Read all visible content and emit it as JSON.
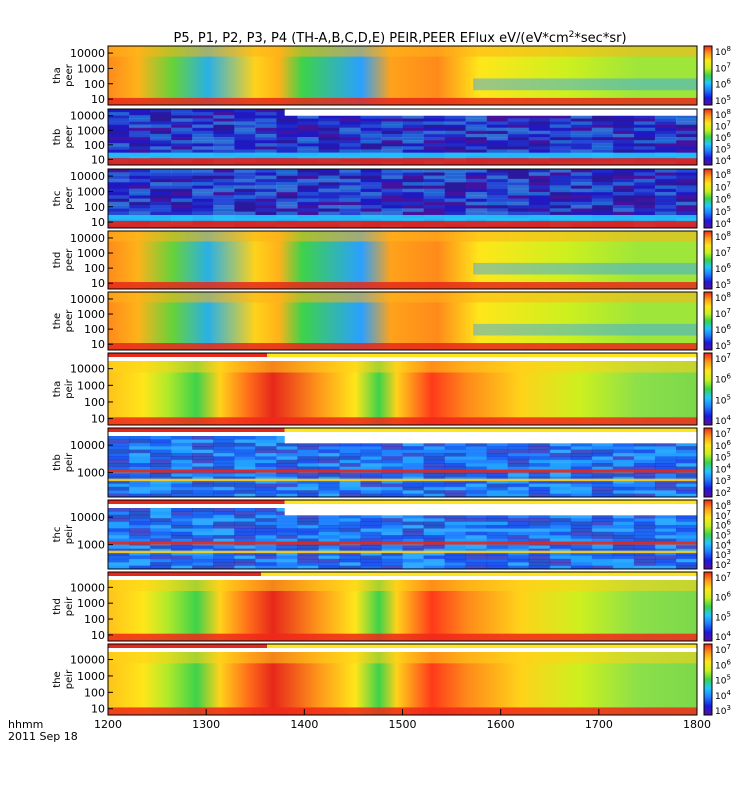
{
  "chart_data": {
    "type": "heatmap",
    "title": "P5, P1, P2, P3, P4 (TH-A,B,C,D,E) PEIR,PEER EFlux eV/(eV*cm",
    "title_sup": "2",
    "title_tail": "*sec*sr)",
    "time_axis": {
      "label_line1": "hhmm",
      "label_line2": "2011 Sep 18",
      "range": [
        1200,
        1800
      ],
      "ticks": [
        "1200",
        "1300",
        "1400",
        "1500",
        "1600",
        "1700",
        "1800"
      ]
    },
    "colorbar_colors": [
      "#5a0fa0",
      "#1a1adc",
      "#1f7bff",
      "#22c8ff",
      "#3ad24a",
      "#c8f01e",
      "#ffe61a",
      "#ff9a1a",
      "#f0281a"
    ],
    "panels": [
      {
        "name": "tha-peer",
        "ylabel1": "tha",
        "ylabel2": "peer",
        "yticks": [
          "10000",
          "1000",
          "100",
          "10"
        ],
        "cbar": {
          "base": "10",
          "exps": [
            "8",
            "7",
            "6",
            "5"
          ]
        },
        "mode": "electron",
        "gap": false,
        "bars": false,
        "cut": 1.0,
        "bg": "#ffa21a",
        "low_band": "#e6281a"
      },
      {
        "name": "thb-peer",
        "ylabel1": "thb",
        "ylabel2": "peer",
        "yticks": [
          "10000",
          "1000",
          "100",
          "10"
        ],
        "cbar": {
          "base": "10",
          "exps": [
            "8",
            "7",
            "6",
            "5",
            "4"
          ]
        },
        "mode": "noise_e",
        "gap": true,
        "gap_cut": 0.3,
        "bars": false,
        "cut": 1.0,
        "bg": "#2a1a9c",
        "low_band": "#e6281a"
      },
      {
        "name": "thc-peer",
        "ylabel1": "thc",
        "ylabel2": "peer",
        "yticks": [
          "10000",
          "1000",
          "100",
          "10"
        ],
        "cbar": {
          "base": "10",
          "exps": [
            "8",
            "7",
            "6",
            "5",
            "4"
          ]
        },
        "mode": "noise_e",
        "gap": false,
        "bars": false,
        "cut": 1.0,
        "bg": "#2a1a9c",
        "low_band": "#e6281a"
      },
      {
        "name": "thd-peer",
        "ylabel1": "thd",
        "ylabel2": "peer",
        "yticks": [
          "10000",
          "1000",
          "100",
          "10"
        ],
        "cbar": {
          "base": "10",
          "exps": [
            "8",
            "7",
            "6",
            "5"
          ]
        },
        "mode": "electron",
        "gap": false,
        "bars": false,
        "cut": 1.0,
        "bg": "#ffa21a",
        "low_band": "#e6281a"
      },
      {
        "name": "the-peer",
        "ylabel1": "the",
        "ylabel2": "peer",
        "yticks": [
          "10000",
          "1000",
          "100",
          "10"
        ],
        "cbar": {
          "base": "10",
          "exps": [
            "8",
            "7",
            "6",
            "5"
          ]
        },
        "mode": "electron",
        "gap": false,
        "bars": false,
        "cut": 1.0,
        "bg": "#ffa21a",
        "low_band": "#e6281a"
      },
      {
        "name": "tha-peir",
        "ylabel1": "tha",
        "ylabel2": "peir",
        "yticks": [
          "10000",
          "1000",
          "100",
          "10"
        ],
        "cbar": {
          "base": "10",
          "exps": [
            "7",
            "6",
            "5",
            "4"
          ]
        },
        "mode": "ion",
        "gap": false,
        "bars": true,
        "cut": 0.27,
        "bg": "#ffd21a",
        "low_band": "#f0281a"
      },
      {
        "name": "thb-peir",
        "ylabel1": "thb",
        "ylabel2": "peir",
        "yticks": [
          "10000",
          "1000"
        ],
        "cbar": {
          "base": "10",
          "exps": [
            "7",
            "6",
            "5",
            "4",
            "3",
            "2"
          ]
        },
        "mode": "noise_i",
        "gap": true,
        "gap_cut": 0.3,
        "bars": true,
        "cut": 0.3,
        "bg": "#22a0ff",
        "low_band": "#e6281a"
      },
      {
        "name": "thc-peir",
        "ylabel1": "thc",
        "ylabel2": "peir",
        "yticks": [
          "10000",
          "1000"
        ],
        "cbar": {
          "base": "10",
          "exps": [
            "8",
            "7",
            "6",
            "5",
            "4",
            "3",
            "2"
          ]
        },
        "mode": "noise_i",
        "gap": true,
        "gap_cut": 0.3,
        "bars": true,
        "cut": 0.3,
        "bg": "#22a0ff",
        "low_band": "#e6281a"
      },
      {
        "name": "thd-peir",
        "ylabel1": "thd",
        "ylabel2": "peir",
        "yticks": [
          "10000",
          "1000",
          "100",
          "10"
        ],
        "cbar": {
          "base": "10",
          "exps": [
            "7",
            "6",
            "5",
            "4"
          ]
        },
        "mode": "ion",
        "gap": false,
        "bars": true,
        "cut": 0.26,
        "bg": "#ffd21a",
        "low_band": "#f0281a"
      },
      {
        "name": "the-peir",
        "ylabel1": "the",
        "ylabel2": "peir",
        "yticks": [
          "10000",
          "1000",
          "100",
          "10"
        ],
        "cbar": {
          "base": "10",
          "exps": [
            "7",
            "6",
            "5",
            "4",
            "3"
          ]
        },
        "mode": "ion",
        "gap": false,
        "bars": true,
        "cut": 0.27,
        "bg": "#ffd21a",
        "low_band": "#f0281a"
      }
    ]
  }
}
